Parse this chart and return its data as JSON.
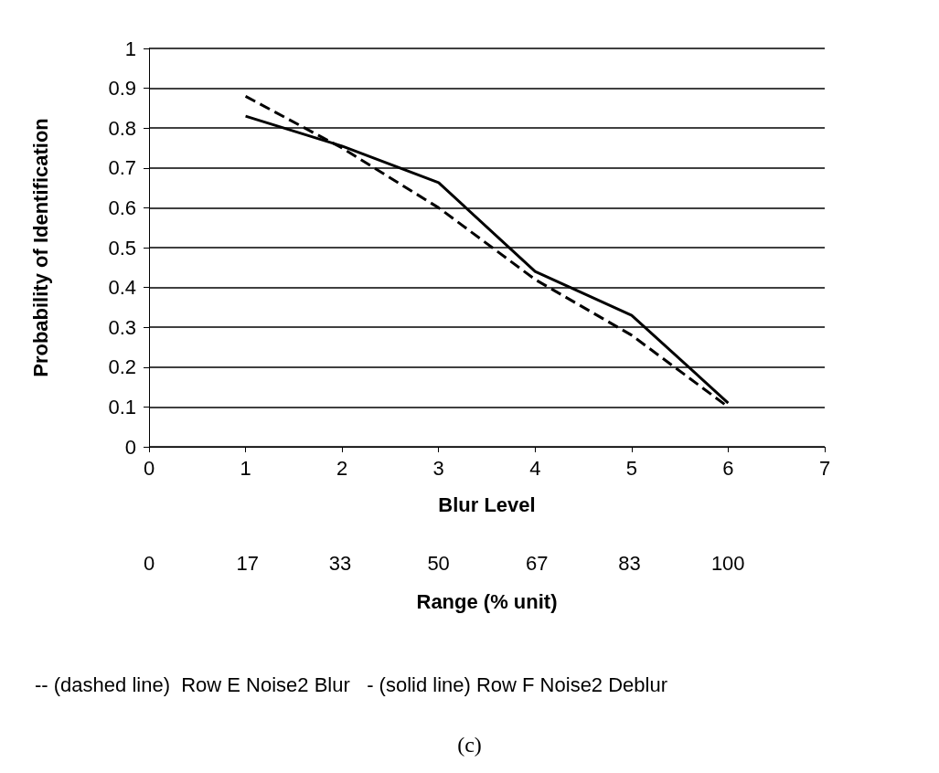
{
  "chart_data": {
    "type": "line",
    "xlabel": "Blur Level",
    "ylabel": "Probability of Identification",
    "x2label": "Range (% unit)",
    "xlim": [
      0,
      7
    ],
    "xticks": [
      0,
      1,
      2,
      3,
      4,
      5,
      6,
      7
    ],
    "x2lim": [
      0,
      116.7
    ],
    "x2ticks": [
      0,
      17,
      33,
      50,
      67,
      83,
      100
    ],
    "ylim": [
      0,
      1
    ],
    "yticks": [
      0,
      0.1,
      0.2,
      0.3,
      0.4,
      0.5,
      0.6,
      0.7,
      0.8,
      0.9,
      1
    ],
    "grid": "y",
    "marker": "none",
    "x": [
      1,
      2,
      3,
      4,
      5,
      6
    ],
    "series": [
      {
        "color": "#000000",
        "line_style": "dashed",
        "values": [
          0.88,
          0.75,
          0.6,
          0.42,
          0.28,
          0.1
        ]
      },
      {
        "color": "#000000",
        "line_style": "solid",
        "values": [
          0.83,
          0.755,
          0.663,
          0.44,
          0.33,
          0.11
        ]
      }
    ],
    "annotations": [
      "-- (dashed line)  Row E Noise2 Blur   - (solid line) Row F Noise2 Deblur",
      "(c)"
    ]
  }
}
